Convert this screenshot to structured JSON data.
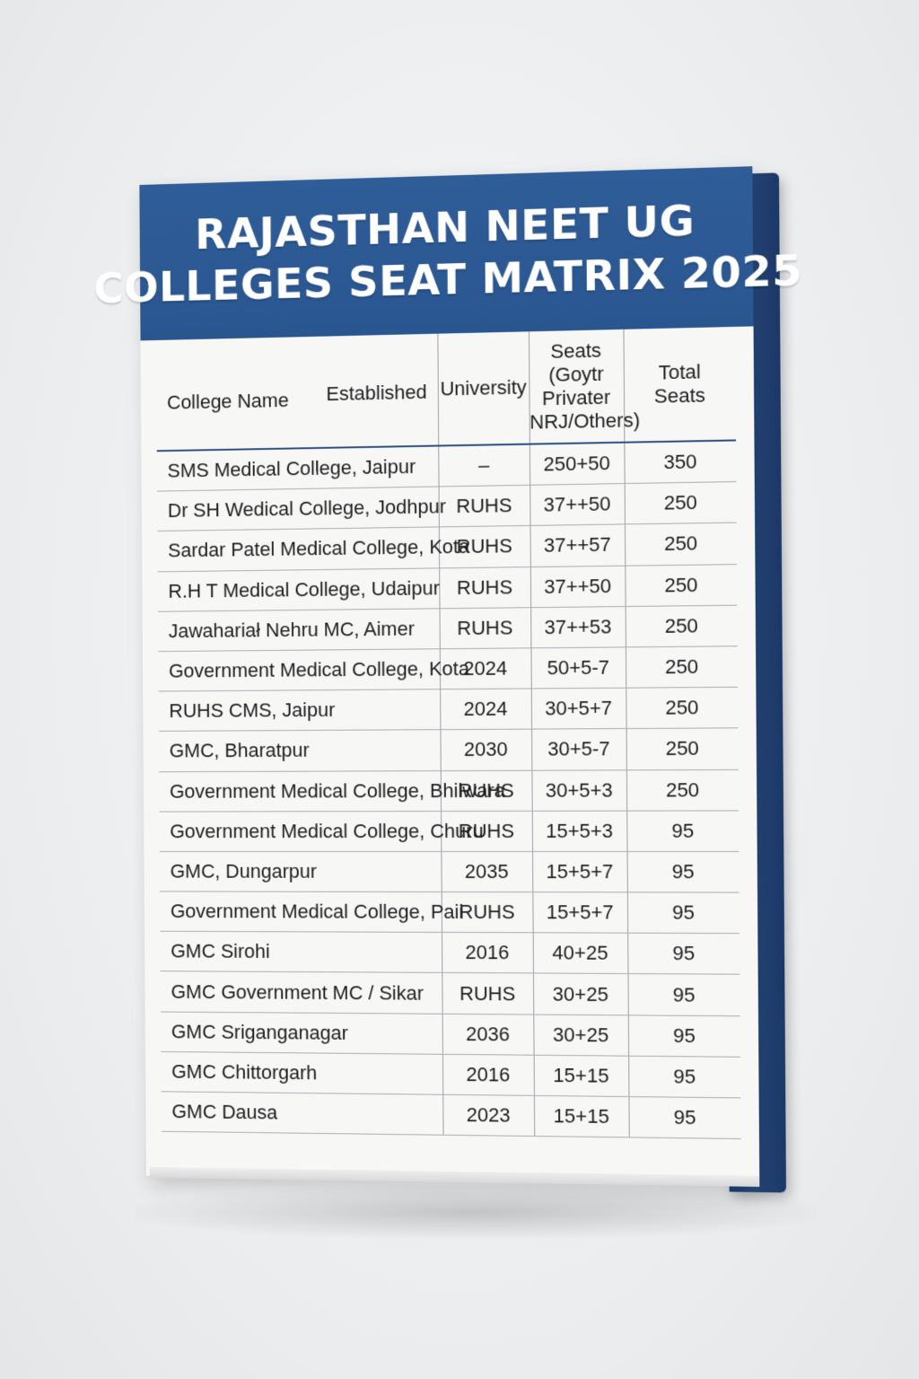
{
  "cover": {
    "title_line1": "RAJASTHAN NEET UG",
    "title_line2": "COLLEGES SEAT MATRIX 2025",
    "header_color": "#2f5d98",
    "spine_color": "#284c84"
  },
  "table": {
    "headers": {
      "college_name": "College Name",
      "established": "Established",
      "university": "University",
      "seats_line1": "Seats",
      "seats_line2": "(Goytr",
      "seats_line3": "Privater",
      "seats_line4": "NRJ/Others)",
      "total_line1": "Total",
      "total_line2": "Seats"
    },
    "rows": [
      {
        "name": "SMS Medical College, Jaipur",
        "university": "–",
        "seats": "250+50",
        "total": "350"
      },
      {
        "name": "Dr SH Wedical College, Jodhpur",
        "university": "RUHS",
        "seats": "37++50",
        "total": "250"
      },
      {
        "name": "Sardar Patel Medical College, Kota",
        "university": "RUHS",
        "seats": "37++57",
        "total": "250"
      },
      {
        "name": "R.H T Medical College, Udaipur",
        "university": "RUHS",
        "seats": "37++50",
        "total": "250"
      },
      {
        "name": "Jawahariał Nehru MC, Aimer",
        "university": "RUHS",
        "seats": "37++53",
        "total": "250"
      },
      {
        "name": "Government Medical College, Kota",
        "university": "2024",
        "seats": "50+5-7",
        "total": "250"
      },
      {
        "name": "RUHS CMS, Jaipur",
        "university": "2024",
        "seats": "30+5+7",
        "total": "250"
      },
      {
        "name": "GMC, Bharatpur",
        "university": "2030",
        "seats": "30+5-7",
        "total": "250"
      },
      {
        "name": "Government Medical College, Bhilwara",
        "university": "RUHS",
        "seats": "30+5+3",
        "total": "250"
      },
      {
        "name": "Government Medical College, Churu",
        "university": "RUHS",
        "seats": "15+5+3",
        "total": "95"
      },
      {
        "name": "GMC, Dungarpur",
        "university": "2035",
        "seats": "15+5+7",
        "total": "95"
      },
      {
        "name": "Government Medical College, Paii",
        "university": "RUHS",
        "seats": "15+5+7",
        "total": "95"
      },
      {
        "name": "GMC Sirohi",
        "university": "2016",
        "seats": "40+25",
        "total": "95"
      },
      {
        "name": "GMC Government MC / Sikar",
        "university": "RUHS",
        "seats": "30+25",
        "total": "95"
      },
      {
        "name": "GMC Sriganganagar",
        "university": "2036",
        "seats": "30+25",
        "total": "95"
      },
      {
        "name": "GMC Chittorgarh",
        "university": "2016",
        "seats": "15+15",
        "total": "95"
      },
      {
        "name": "GMC Dausa",
        "university": "2023",
        "seats": "15+15",
        "total": "95"
      }
    ]
  }
}
